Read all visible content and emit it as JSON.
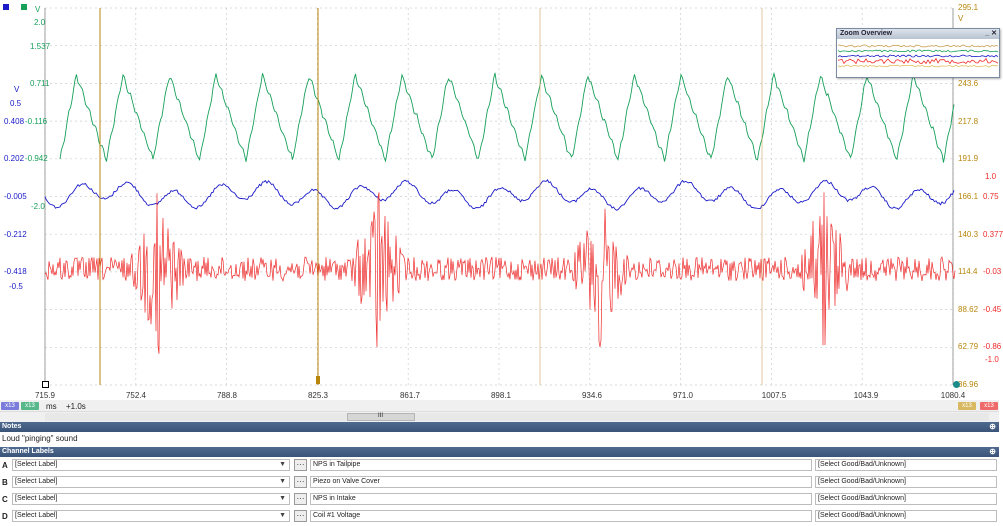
{
  "toolbar_icons": [
    "blue-square-icon",
    "green-square-icon"
  ],
  "scope": {
    "axis_a_values": [
      "-0.005",
      "-0.212",
      "-0.418"
    ],
    "axis_a_unit": "V",
    "axis_b_values": [
      "0.5",
      "-0.5"
    ],
    "axis_b_unit": "V",
    "axis_b_top": "0.408",
    "axis_b_mid": "0.202",
    "axis_c_values": [
      "2.0",
      "1.537",
      "0.711",
      "-0.116",
      "-0.942",
      "-2.0"
    ],
    "axis_c_unit": "V",
    "axis_d_values": [
      "295.1",
      "243.6",
      "217.8",
      "191.9",
      "166.1",
      "140.3",
      "114.4",
      "88.62",
      "62.79",
      "36.96"
    ],
    "axis_d_unit": "V",
    "axis_e_values": [
      "1.0",
      "0.75",
      "0.377",
      "-0.03",
      "-0.45",
      "-0.86",
      "-1.0"
    ],
    "x_ticks": [
      "715.9",
      "752.4",
      "788.8",
      "825.3",
      "861.7",
      "898.1",
      "934.6",
      "971.0",
      "1007.5",
      "1043.9",
      "1080.4"
    ],
    "x_unit": "ms",
    "x_scale": "+1.0s",
    "chips_left": [
      "x13",
      "x13"
    ],
    "chips_right": [
      "x13",
      "x13"
    ],
    "scrollbar_center": "III",
    "colors": {
      "green": "#17a05a",
      "blue": "#1a1ac8",
      "red": "#ee2b2b",
      "cursor": "#c8a050",
      "cursor_dark": "#b8860b",
      "grid": "#c8cdd2"
    }
  },
  "zoom_overview": {
    "title": "Zoom Overview",
    "buttons": "_ ✕"
  },
  "notes": {
    "header": "Notes",
    "text": "Loud \"pinging\" sound"
  },
  "channel_labels": {
    "header": "Channel Labels",
    "rows": [
      {
        "letter": "A",
        "select": "[Select Label]",
        "name": "NPS in Tailpipe",
        "status": "[Select Good/Bad/Unknown]"
      },
      {
        "letter": "B",
        "select": "[Select Label]",
        "name": "Piezo on Valve Cover",
        "status": "[Select Good/Bad/Unknown]"
      },
      {
        "letter": "C",
        "select": "[Select Label]",
        "name": "NPS in Intake",
        "status": "[Select Good/Bad/Unknown]"
      },
      {
        "letter": "D",
        "select": "[Select Label]",
        "name": "Coil #1 Voltage",
        "status": "[Select Good/Bad/Unknown]"
      }
    ]
  },
  "pin_glyph": "⊕",
  "dots_glyph": "···",
  "dropdown_glyph": "▼"
}
